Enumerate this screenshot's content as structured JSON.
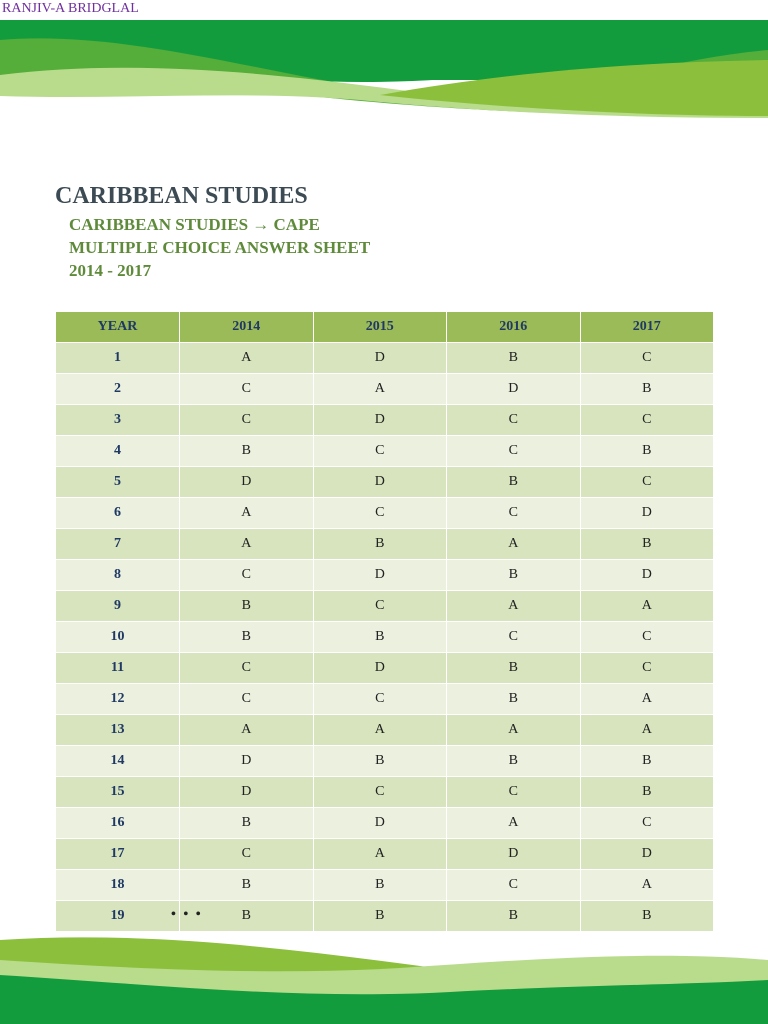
{
  "header": {
    "author": "RANJIV-A BRIDGLAL",
    "title": "CARIBBEAN STUDIES",
    "subtitle_lines": [
      "CARIBBEAN STUDIES → CAPE",
      "MULTIPLE CHOICE ANSWER SHEET",
      "2014 - 2017"
    ]
  },
  "table": {
    "columns": [
      "YEAR",
      "2014",
      "2015",
      "2016",
      "2017"
    ],
    "rows": [
      [
        "1",
        "A",
        "D",
        "B",
        "C"
      ],
      [
        "2",
        "C",
        "A",
        "D",
        "B"
      ],
      [
        "3",
        "C",
        "D",
        "C",
        "C"
      ],
      [
        "4",
        "B",
        "C",
        "C",
        "B"
      ],
      [
        "5",
        "D",
        "D",
        "B",
        "C"
      ],
      [
        "6",
        "A",
        "C",
        "C",
        "D"
      ],
      [
        "7",
        "A",
        "B",
        "A",
        "B"
      ],
      [
        "8",
        "C",
        "D",
        "B",
        "D"
      ],
      [
        "9",
        "B",
        "C",
        "A",
        "A"
      ],
      [
        "10",
        "B",
        "B",
        "C",
        "C"
      ],
      [
        "11",
        "C",
        "D",
        "B",
        "C"
      ],
      [
        "12",
        "C",
        "C",
        "B",
        "A"
      ],
      [
        "13",
        "A",
        "A",
        "A",
        "A"
      ],
      [
        "14",
        "D",
        "B",
        "B",
        "B"
      ],
      [
        "15",
        "D",
        "C",
        "C",
        "B"
      ],
      [
        "16",
        "B",
        "D",
        "A",
        "C"
      ],
      [
        "17",
        "C",
        "A",
        "D",
        "D"
      ],
      [
        "18",
        "B",
        "B",
        "C",
        "A"
      ],
      [
        "19",
        "B",
        "B",
        "B",
        "B"
      ]
    ],
    "continuation": "• • •"
  }
}
